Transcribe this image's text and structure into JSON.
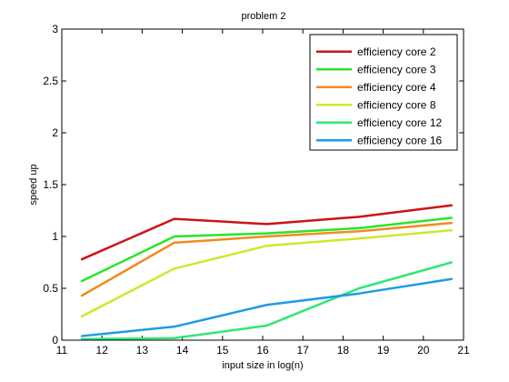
{
  "chart_data": {
    "type": "line",
    "title": "problem 2",
    "xlabel": "input size in log(n)",
    "ylabel": "speed up",
    "xlim": [
      11,
      21
    ],
    "ylim": [
      0,
      3
    ],
    "xticks": [
      11,
      12,
      13,
      14,
      15,
      16,
      17,
      18,
      19,
      20,
      21
    ],
    "yticks": [
      0,
      0.5,
      1,
      1.5,
      2,
      2.5,
      3
    ],
    "ytick_labels": [
      "0",
      "0.5",
      "1",
      "1.5",
      "2",
      "2.5",
      "3"
    ],
    "grid": false,
    "legend_position": "top-right",
    "x": [
      11.5,
      13.8,
      16.1,
      18.4,
      20.7
    ],
    "series": [
      {
        "name": "efficiency core 2",
        "color": "#cc1414",
        "values": [
          0.78,
          1.17,
          1.12,
          1.19,
          1.3
        ]
      },
      {
        "name": "efficiency core 3",
        "color": "#28e628",
        "values": [
          0.57,
          1.0,
          1.03,
          1.08,
          1.18
        ]
      },
      {
        "name": "efficiency core 4",
        "color": "#f08c1e",
        "values": [
          0.43,
          0.94,
          1.0,
          1.05,
          1.13
        ]
      },
      {
        "name": "efficiency core 8",
        "color": "#d2e628",
        "values": [
          0.23,
          0.69,
          0.91,
          0.98,
          1.06
        ]
      },
      {
        "name": "efficiency core 12",
        "color": "#32e678",
        "values": [
          0.01,
          0.02,
          0.14,
          0.5,
          0.75
        ]
      },
      {
        "name": "efficiency core 16",
        "color": "#1e9be6",
        "values": [
          0.04,
          0.13,
          0.34,
          0.45,
          0.59
        ]
      }
    ]
  }
}
